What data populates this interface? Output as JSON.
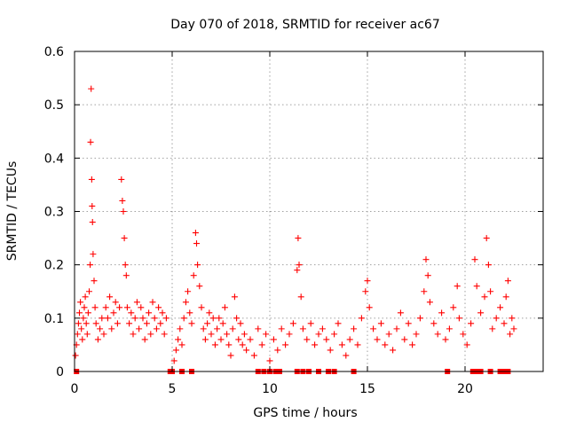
{
  "chart_data": {
    "type": "scatter",
    "title": "Day 070 of 2018, SRMTID for receiver ac67",
    "xlabel": "GPS time / hours",
    "ylabel": "SRMTID / TECUs",
    "xlim": [
      0,
      24
    ],
    "ylim": [
      0,
      0.6
    ],
    "xticks": [
      0,
      5,
      10,
      15,
      20
    ],
    "yticks": [
      0,
      0.1,
      0.2,
      0.3,
      0.4,
      0.5,
      0.6
    ],
    "xtick_labels": [
      "0",
      "5",
      "10",
      "15",
      "20"
    ],
    "ytick_labels": [
      "0",
      "0.1",
      "0.2",
      "0.3",
      "0.4",
      "0.5",
      "0.6"
    ],
    "grid": true,
    "marker": "plus",
    "color": "#ff0000",
    "series": [
      {
        "name": "SRMTID",
        "points": [
          [
            0.05,
            0.03
          ],
          [
            0.1,
            0.05
          ],
          [
            0.15,
            0.07
          ],
          [
            0.2,
            0.09
          ],
          [
            0.25,
            0.11
          ],
          [
            0.3,
            0.13
          ],
          [
            0.35,
            0.08
          ],
          [
            0.4,
            0.06
          ],
          [
            0.45,
            0.1
          ],
          [
            0.5,
            0.12
          ],
          [
            0.55,
            0.14
          ],
          [
            0.6,
            0.09
          ],
          [
            0.65,
            0.07
          ],
          [
            0.7,
            0.11
          ],
          [
            0.75,
            0.15
          ],
          [
            0.8,
            0.2
          ],
          [
            0.82,
            0.43
          ],
          [
            0.85,
            0.53
          ],
          [
            0.88,
            0.36
          ],
          [
            0.9,
            0.31
          ],
          [
            0.92,
            0.28
          ],
          [
            0.95,
            0.22
          ],
          [
            1.0,
            0.17
          ],
          [
            1.05,
            0.12
          ],
          [
            1.1,
            0.09
          ],
          [
            1.2,
            0.06
          ],
          [
            1.3,
            0.08
          ],
          [
            1.4,
            0.1
          ],
          [
            1.5,
            0.07
          ],
          [
            1.6,
            0.12
          ],
          [
            1.7,
            0.1
          ],
          [
            1.8,
            0.14
          ],
          [
            1.9,
            0.08
          ],
          [
            2.0,
            0.11
          ],
          [
            2.1,
            0.13
          ],
          [
            2.2,
            0.09
          ],
          [
            2.3,
            0.12
          ],
          [
            2.4,
            0.36
          ],
          [
            2.45,
            0.32
          ],
          [
            2.5,
            0.3
          ],
          [
            2.55,
            0.25
          ],
          [
            2.6,
            0.2
          ],
          [
            2.65,
            0.18
          ],
          [
            2.7,
            0.12
          ],
          [
            2.8,
            0.09
          ],
          [
            2.9,
            0.11
          ],
          [
            3.0,
            0.07
          ],
          [
            3.1,
            0.1
          ],
          [
            3.2,
            0.13
          ],
          [
            3.3,
            0.08
          ],
          [
            3.4,
            0.12
          ],
          [
            3.5,
            0.1
          ],
          [
            3.6,
            0.06
          ],
          [
            3.7,
            0.09
          ],
          [
            3.8,
            0.11
          ],
          [
            3.9,
            0.07
          ],
          [
            4.0,
            0.13
          ],
          [
            4.1,
            0.1
          ],
          [
            4.2,
            0.08
          ],
          [
            4.3,
            0.12
          ],
          [
            4.4,
            0.09
          ],
          [
            4.5,
            0.11
          ],
          [
            4.6,
            0.07
          ],
          [
            4.7,
            0.1
          ],
          [
            5.1,
            0.02
          ],
          [
            5.2,
            0.04
          ],
          [
            5.3,
            0.06
          ],
          [
            5.4,
            0.08
          ],
          [
            5.5,
            0.05
          ],
          [
            5.6,
            0.1
          ],
          [
            5.7,
            0.13
          ],
          [
            5.8,
            0.15
          ],
          [
            5.9,
            0.11
          ],
          [
            6.0,
            0.09
          ],
          [
            6.1,
            0.18
          ],
          [
            6.2,
            0.26
          ],
          [
            6.25,
            0.24
          ],
          [
            6.3,
            0.2
          ],
          [
            6.4,
            0.16
          ],
          [
            6.5,
            0.12
          ],
          [
            6.6,
            0.08
          ],
          [
            6.7,
            0.06
          ],
          [
            6.8,
            0.09
          ],
          [
            6.9,
            0.11
          ],
          [
            7.0,
            0.07
          ],
          [
            7.1,
            0.1
          ],
          [
            7.2,
            0.05
          ],
          [
            7.3,
            0.08
          ],
          [
            7.4,
            0.1
          ],
          [
            7.5,
            0.06
          ],
          [
            7.6,
            0.09
          ],
          [
            7.7,
            0.12
          ],
          [
            7.8,
            0.07
          ],
          [
            7.9,
            0.05
          ],
          [
            8.0,
            0.03
          ],
          [
            8.1,
            0.08
          ],
          [
            8.2,
            0.14
          ],
          [
            8.3,
            0.1
          ],
          [
            8.4,
            0.06
          ],
          [
            8.5,
            0.09
          ],
          [
            8.6,
            0.05
          ],
          [
            8.7,
            0.07
          ],
          [
            8.8,
            0.04
          ],
          [
            9.0,
            0.06
          ],
          [
            9.2,
            0.03
          ],
          [
            9.4,
            0.08
          ],
          [
            9.6,
            0.05
          ],
          [
            9.8,
            0.07
          ],
          [
            10.0,
            0.02
          ],
          [
            10.2,
            0.06
          ],
          [
            10.4,
            0.04
          ],
          [
            10.6,
            0.08
          ],
          [
            10.8,
            0.05
          ],
          [
            11.0,
            0.07
          ],
          [
            11.2,
            0.09
          ],
          [
            11.4,
            0.19
          ],
          [
            11.45,
            0.25
          ],
          [
            11.5,
            0.2
          ],
          [
            11.6,
            0.14
          ],
          [
            11.7,
            0.08
          ],
          [
            11.9,
            0.06
          ],
          [
            12.1,
            0.09
          ],
          [
            12.3,
            0.05
          ],
          [
            12.5,
            0.07
          ],
          [
            12.7,
            0.08
          ],
          [
            12.9,
            0.06
          ],
          [
            13.1,
            0.04
          ],
          [
            13.3,
            0.07
          ],
          [
            13.5,
            0.09
          ],
          [
            13.7,
            0.05
          ],
          [
            13.9,
            0.03
          ],
          [
            14.1,
            0.06
          ],
          [
            14.3,
            0.08
          ],
          [
            14.5,
            0.05
          ],
          [
            14.7,
            0.1
          ],
          [
            14.9,
            0.15
          ],
          [
            15.0,
            0.17
          ],
          [
            15.1,
            0.12
          ],
          [
            15.3,
            0.08
          ],
          [
            15.5,
            0.06
          ],
          [
            15.7,
            0.09
          ],
          [
            15.9,
            0.05
          ],
          [
            16.1,
            0.07
          ],
          [
            16.3,
            0.04
          ],
          [
            16.5,
            0.08
          ],
          [
            16.7,
            0.11
          ],
          [
            16.9,
            0.06
          ],
          [
            17.1,
            0.09
          ],
          [
            17.3,
            0.05
          ],
          [
            17.5,
            0.07
          ],
          [
            17.7,
            0.1
          ],
          [
            17.9,
            0.15
          ],
          [
            18.0,
            0.21
          ],
          [
            18.1,
            0.18
          ],
          [
            18.2,
            0.13
          ],
          [
            18.4,
            0.09
          ],
          [
            18.6,
            0.07
          ],
          [
            18.8,
            0.11
          ],
          [
            19.0,
            0.06
          ],
          [
            19.2,
            0.08
          ],
          [
            19.4,
            0.12
          ],
          [
            19.6,
            0.16
          ],
          [
            19.7,
            0.1
          ],
          [
            19.9,
            0.07
          ],
          [
            20.1,
            0.05
          ],
          [
            20.3,
            0.09
          ],
          [
            20.5,
            0.21
          ],
          [
            20.6,
            0.16
          ],
          [
            20.8,
            0.11
          ],
          [
            21.0,
            0.14
          ],
          [
            21.1,
            0.25
          ],
          [
            21.2,
            0.2
          ],
          [
            21.3,
            0.15
          ],
          [
            21.4,
            0.08
          ],
          [
            21.6,
            0.1
          ],
          [
            21.8,
            0.12
          ],
          [
            22.0,
            0.09
          ],
          [
            22.1,
            0.14
          ],
          [
            22.2,
            0.17
          ],
          [
            22.3,
            0.07
          ],
          [
            22.4,
            0.1
          ],
          [
            22.5,
            0.08
          ]
        ]
      }
    ],
    "gap_markers_x": [
      0.1,
      4.9,
      5.0,
      5.5,
      6.0,
      9.4,
      9.7,
      10.0,
      10.3,
      10.5,
      11.4,
      11.7,
      12.0,
      12.5,
      13.0,
      13.3,
      14.3,
      19.1,
      20.4,
      20.6,
      20.8,
      21.3,
      21.8,
      22.0,
      22.2
    ]
  }
}
